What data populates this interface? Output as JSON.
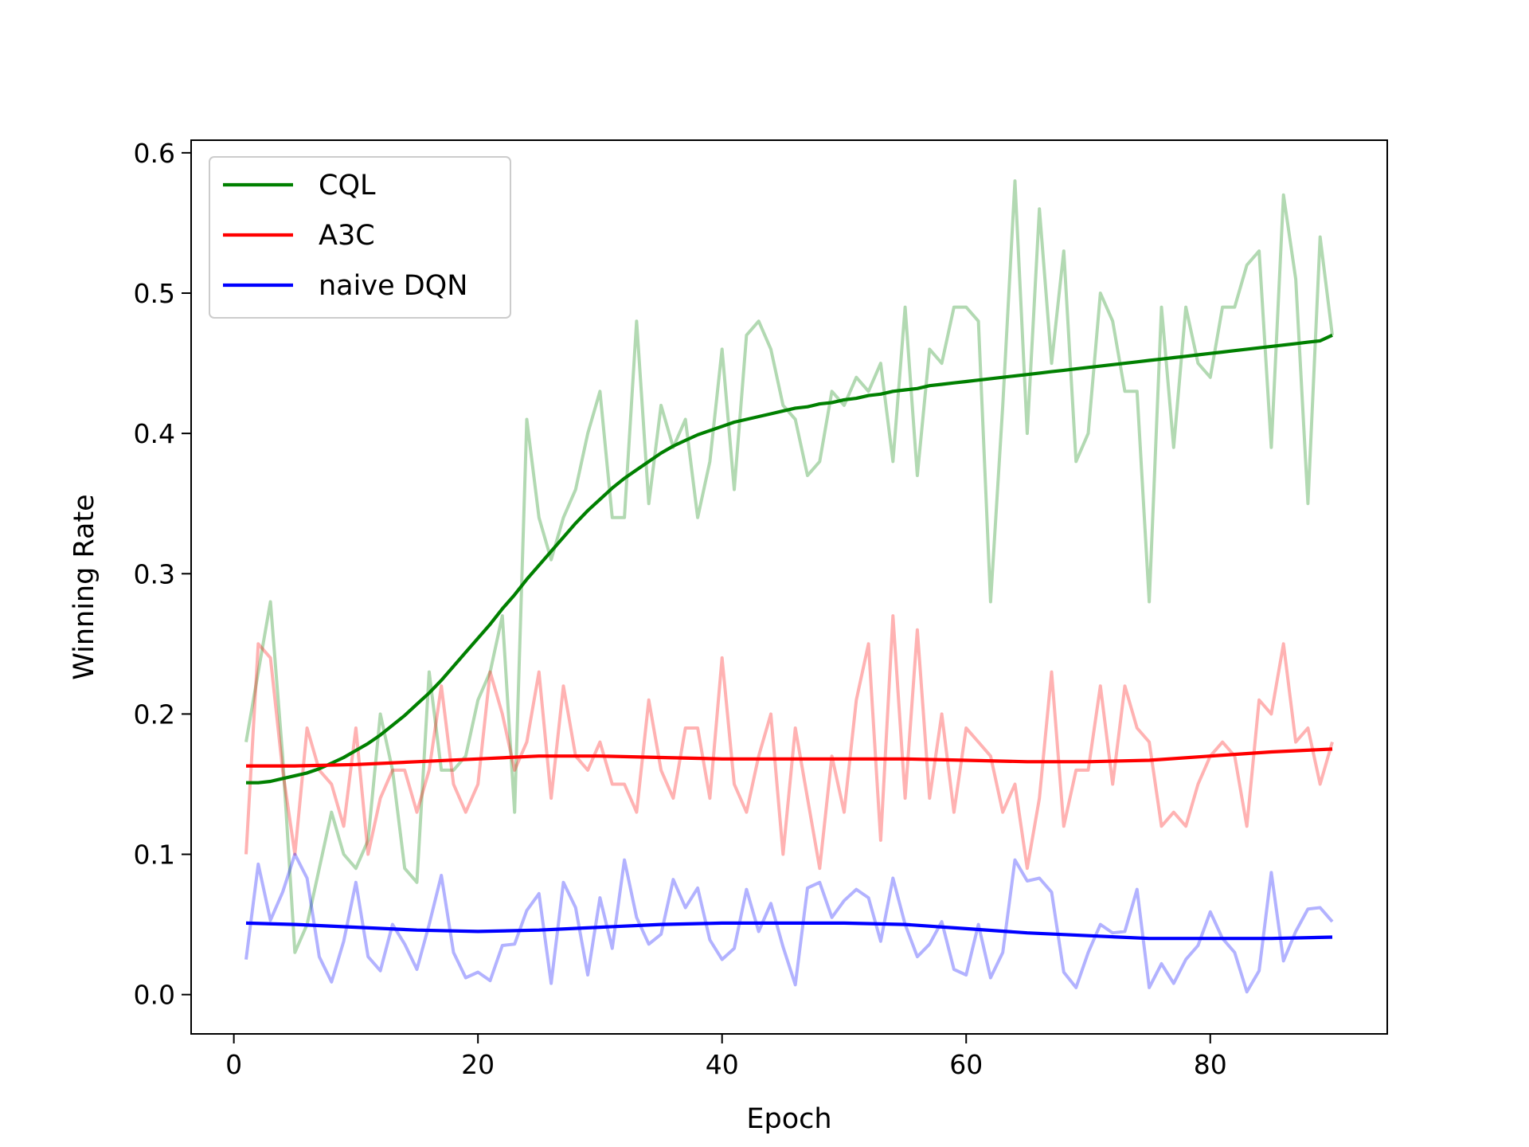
{
  "chart_data": {
    "type": "line",
    "title": "",
    "xlabel": "Epoch",
    "ylabel": "Winning Rate",
    "xlim": [
      -3.5,
      94.5
    ],
    "ylim": [
      -0.028,
      0.609
    ],
    "xticks": [
      0,
      20,
      40,
      60,
      80
    ],
    "xtick_labels": [
      "0",
      "20",
      "40",
      "60",
      "80"
    ],
    "yticks": [
      0.0,
      0.1,
      0.2,
      0.3,
      0.4,
      0.5,
      0.6
    ],
    "ytick_labels": [
      "0.0",
      "0.1",
      "0.2",
      "0.3",
      "0.4",
      "0.5",
      "0.6"
    ],
    "grid": false,
    "legend_position": "upper-left",
    "colors": {
      "cql": "#008000",
      "a3c": "#ff0000",
      "dqn": "#0000ff"
    },
    "legend": [
      {
        "label": "CQL",
        "series": "cql"
      },
      {
        "label": "A3C",
        "series": "a3c"
      },
      {
        "label": "naive DQN",
        "series": "dqn"
      }
    ],
    "series": [
      {
        "name": "CQL raw",
        "key": "cql",
        "style": "raw",
        "opacity": 0.3,
        "x": [
          1,
          2,
          3,
          4,
          5,
          6,
          7,
          8,
          9,
          10,
          11,
          12,
          13,
          14,
          15,
          16,
          17,
          18,
          19,
          20,
          21,
          22,
          23,
          24,
          25,
          26,
          27,
          28,
          29,
          30,
          31,
          32,
          33,
          34,
          35,
          36,
          37,
          38,
          39,
          40,
          41,
          42,
          43,
          44,
          45,
          46,
          47,
          48,
          49,
          50,
          51,
          52,
          53,
          54,
          55,
          56,
          57,
          58,
          59,
          60,
          61,
          62,
          63,
          64,
          65,
          66,
          67,
          68,
          69,
          70,
          71,
          72,
          73,
          74,
          75,
          76,
          77,
          78,
          79,
          80,
          81,
          82,
          83,
          84,
          85,
          86,
          87,
          88,
          89,
          90
        ],
        "values": [
          0.18,
          0.23,
          0.28,
          0.17,
          0.03,
          0.05,
          0.09,
          0.13,
          0.1,
          0.09,
          0.11,
          0.2,
          0.16,
          0.09,
          0.08,
          0.23,
          0.16,
          0.16,
          0.17,
          0.21,
          0.23,
          0.27,
          0.13,
          0.41,
          0.34,
          0.31,
          0.34,
          0.36,
          0.4,
          0.43,
          0.34,
          0.34,
          0.48,
          0.35,
          0.42,
          0.39,
          0.41,
          0.34,
          0.38,
          0.46,
          0.36,
          0.47,
          0.48,
          0.46,
          0.42,
          0.41,
          0.37,
          0.38,
          0.43,
          0.42,
          0.44,
          0.43,
          0.45,
          0.38,
          0.49,
          0.37,
          0.46,
          0.45,
          0.49,
          0.49,
          0.48,
          0.28,
          0.42,
          0.58,
          0.4,
          0.56,
          0.45,
          0.53,
          0.38,
          0.4,
          0.5,
          0.48,
          0.43,
          0.43,
          0.28,
          0.49,
          0.39,
          0.49,
          0.45,
          0.44,
          0.49,
          0.49,
          0.52,
          0.53,
          0.39,
          0.57,
          0.51,
          0.35,
          0.54,
          0.47
        ]
      },
      {
        "name": "A3C raw",
        "key": "a3c",
        "style": "raw",
        "opacity": 0.3,
        "x": [
          1,
          2,
          3,
          4,
          5,
          6,
          7,
          8,
          9,
          10,
          11,
          12,
          13,
          14,
          15,
          16,
          17,
          18,
          19,
          20,
          21,
          22,
          23,
          24,
          25,
          26,
          27,
          28,
          29,
          30,
          31,
          32,
          33,
          34,
          35,
          36,
          37,
          38,
          39,
          40,
          41,
          42,
          43,
          44,
          45,
          46,
          47,
          48,
          49,
          50,
          51,
          52,
          53,
          54,
          55,
          56,
          57,
          58,
          59,
          60,
          61,
          62,
          63,
          64,
          65,
          66,
          67,
          68,
          69,
          70,
          71,
          72,
          73,
          74,
          75,
          76,
          77,
          78,
          79,
          80,
          81,
          82,
          83,
          84,
          85,
          86,
          87,
          88,
          89,
          90
        ],
        "values": [
          0.1,
          0.25,
          0.24,
          0.16,
          0.1,
          0.19,
          0.16,
          0.15,
          0.12,
          0.19,
          0.1,
          0.14,
          0.16,
          0.16,
          0.13,
          0.16,
          0.22,
          0.15,
          0.13,
          0.15,
          0.23,
          0.2,
          0.16,
          0.18,
          0.23,
          0.14,
          0.22,
          0.17,
          0.16,
          0.18,
          0.15,
          0.15,
          0.13,
          0.21,
          0.16,
          0.14,
          0.19,
          0.19,
          0.14,
          0.24,
          0.15,
          0.13,
          0.17,
          0.2,
          0.1,
          0.19,
          0.14,
          0.09,
          0.17,
          0.13,
          0.21,
          0.25,
          0.11,
          0.27,
          0.14,
          0.26,
          0.14,
          0.2,
          0.13,
          0.19,
          0.18,
          0.17,
          0.13,
          0.15,
          0.09,
          0.14,
          0.23,
          0.12,
          0.16,
          0.16,
          0.22,
          0.15,
          0.22,
          0.19,
          0.18,
          0.12,
          0.13,
          0.12,
          0.15,
          0.17,
          0.18,
          0.17,
          0.12,
          0.21,
          0.2,
          0.25,
          0.18,
          0.19,
          0.15,
          0.18
        ]
      },
      {
        "name": "naive DQN raw",
        "key": "dqn",
        "style": "raw",
        "opacity": 0.3,
        "x": [
          1,
          2,
          3,
          4,
          5,
          6,
          7,
          8,
          9,
          10,
          11,
          12,
          13,
          14,
          15,
          16,
          17,
          18,
          19,
          20,
          21,
          22,
          23,
          24,
          25,
          26,
          27,
          28,
          29,
          30,
          31,
          32,
          33,
          34,
          35,
          36,
          37,
          38,
          39,
          40,
          41,
          42,
          43,
          44,
          45,
          46,
          47,
          48,
          49,
          50,
          51,
          52,
          53,
          54,
          55,
          56,
          57,
          58,
          59,
          60,
          61,
          62,
          63,
          64,
          65,
          66,
          67,
          68,
          69,
          70,
          71,
          72,
          73,
          74,
          75,
          76,
          77,
          78,
          79,
          80,
          81,
          82,
          83,
          84,
          85,
          86,
          87,
          88,
          89,
          90
        ],
        "values": [
          0.025,
          0.093,
          0.053,
          0.073,
          0.1,
          0.083,
          0.027,
          0.009,
          0.038,
          0.08,
          0.027,
          0.017,
          0.05,
          0.036,
          0.018,
          0.05,
          0.085,
          0.03,
          0.012,
          0.016,
          0.01,
          0.035,
          0.036,
          0.06,
          0.072,
          0.008,
          0.08,
          0.062,
          0.014,
          0.069,
          0.033,
          0.096,
          0.055,
          0.036,
          0.043,
          0.082,
          0.062,
          0.076,
          0.039,
          0.025,
          0.033,
          0.075,
          0.045,
          0.065,
          0.034,
          0.007,
          0.076,
          0.08,
          0.055,
          0.067,
          0.075,
          0.069,
          0.038,
          0.083,
          0.05,
          0.027,
          0.036,
          0.052,
          0.018,
          0.014,
          0.05,
          0.012,
          0.03,
          0.096,
          0.081,
          0.083,
          0.073,
          0.016,
          0.005,
          0.03,
          0.05,
          0.044,
          0.045,
          0.075,
          0.005,
          0.022,
          0.008,
          0.025,
          0.035,
          0.059,
          0.04,
          0.03,
          0.002,
          0.017,
          0.087,
          0.024,
          0.045,
          0.061,
          0.062,
          0.052
        ]
      },
      {
        "name": "CQL",
        "key": "cql",
        "style": "smooth",
        "opacity": 1,
        "x": [
          1,
          2,
          3,
          4,
          5,
          6,
          7,
          8,
          9,
          10,
          11,
          12,
          13,
          14,
          15,
          16,
          17,
          18,
          19,
          20,
          21,
          22,
          23,
          24,
          25,
          26,
          27,
          28,
          29,
          30,
          31,
          32,
          33,
          34,
          35,
          36,
          37,
          38,
          39,
          40,
          41,
          42,
          43,
          44,
          45,
          46,
          47,
          48,
          49,
          50,
          51,
          52,
          53,
          54,
          55,
          56,
          57,
          58,
          59,
          60,
          61,
          62,
          63,
          64,
          65,
          66,
          67,
          68,
          69,
          70,
          71,
          72,
          73,
          74,
          75,
          76,
          77,
          78,
          79,
          80,
          81,
          82,
          83,
          84,
          85,
          86,
          87,
          88,
          89,
          90
        ],
        "values": [
          0.151,
          0.151,
          0.152,
          0.154,
          0.156,
          0.158,
          0.161,
          0.165,
          0.169,
          0.174,
          0.179,
          0.185,
          0.192,
          0.199,
          0.207,
          0.215,
          0.224,
          0.234,
          0.244,
          0.254,
          0.264,
          0.275,
          0.285,
          0.296,
          0.306,
          0.316,
          0.326,
          0.336,
          0.345,
          0.353,
          0.361,
          0.368,
          0.374,
          0.38,
          0.386,
          0.391,
          0.395,
          0.399,
          0.402,
          0.405,
          0.408,
          0.41,
          0.412,
          0.414,
          0.416,
          0.418,
          0.419,
          0.421,
          0.422,
          0.424,
          0.425,
          0.427,
          0.428,
          0.43,
          0.431,
          0.432,
          0.434,
          0.435,
          0.436,
          0.437,
          0.438,
          0.439,
          0.44,
          0.441,
          0.442,
          0.443,
          0.444,
          0.445,
          0.446,
          0.447,
          0.448,
          0.449,
          0.45,
          0.451,
          0.452,
          0.453,
          0.454,
          0.455,
          0.456,
          0.457,
          0.458,
          0.459,
          0.46,
          0.461,
          0.462,
          0.463,
          0.464,
          0.465,
          0.466,
          0.47
        ]
      },
      {
        "name": "A3C",
        "key": "a3c",
        "style": "smooth",
        "opacity": 1,
        "x": [
          1,
          5,
          10,
          15,
          20,
          25,
          30,
          35,
          40,
          45,
          50,
          55,
          60,
          65,
          70,
          75,
          80,
          85,
          90
        ],
        "values": [
          0.163,
          0.163,
          0.164,
          0.166,
          0.168,
          0.17,
          0.17,
          0.169,
          0.168,
          0.168,
          0.168,
          0.168,
          0.167,
          0.166,
          0.166,
          0.167,
          0.17,
          0.173,
          0.175
        ]
      },
      {
        "name": "naive DQN",
        "key": "dqn",
        "style": "smooth",
        "opacity": 1,
        "x": [
          1,
          5,
          10,
          15,
          20,
          25,
          30,
          35,
          40,
          45,
          50,
          55,
          60,
          65,
          70,
          75,
          80,
          85,
          90
        ],
        "values": [
          0.051,
          0.05,
          0.048,
          0.046,
          0.045,
          0.046,
          0.048,
          0.05,
          0.051,
          0.051,
          0.051,
          0.05,
          0.047,
          0.044,
          0.042,
          0.04,
          0.04,
          0.04,
          0.041
        ]
      }
    ]
  }
}
